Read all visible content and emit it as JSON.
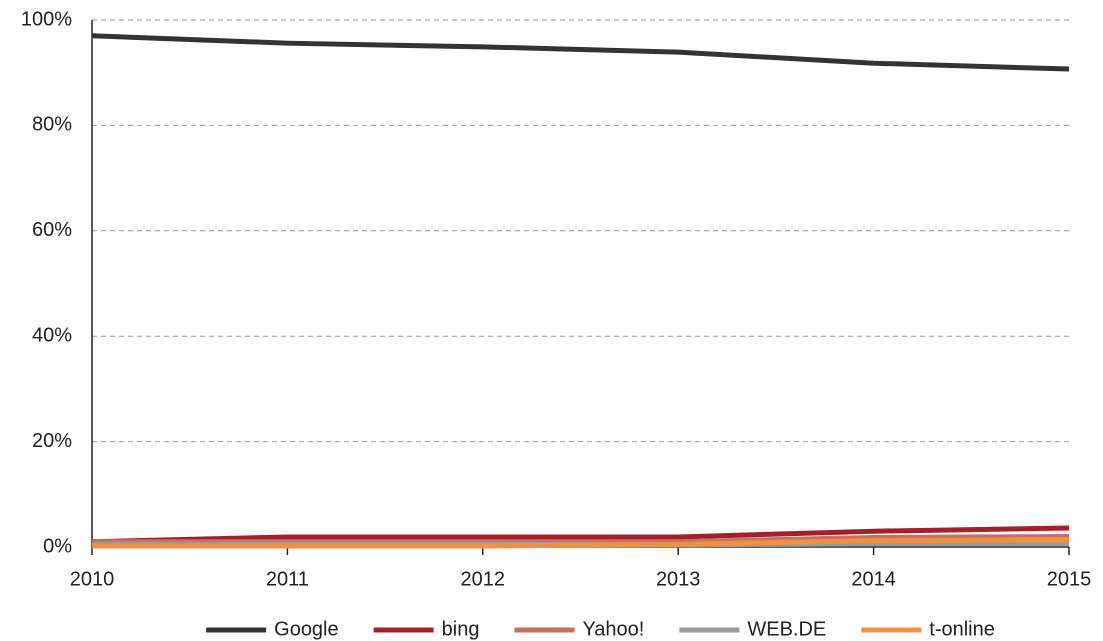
{
  "chart_data": {
    "type": "line",
    "x": [
      2010,
      2011,
      2012,
      2013,
      2014,
      2015
    ],
    "xlim": [
      2010,
      2015
    ],
    "xticks": [
      2010,
      2011,
      2012,
      2013,
      2014,
      2015
    ],
    "ylim": [
      0,
      100
    ],
    "yticks": [
      {
        "value": 0,
        "label": "0%"
      },
      {
        "value": 20,
        "label": "20%"
      },
      {
        "value": 40,
        "label": "40%"
      },
      {
        "value": 60,
        "label": "60%"
      },
      {
        "value": 80,
        "label": "80%"
      },
      {
        "value": 100,
        "label": "100%"
      }
    ],
    "grid": true,
    "legend": "bottom",
    "series": [
      {
        "name": "Google",
        "color": "#333333",
        "values": [
          97.0,
          95.6,
          94.9,
          93.9,
          91.8,
          90.7
        ]
      },
      {
        "name": "bing",
        "color": "#a3202a",
        "values": [
          1.0,
          1.9,
          1.9,
          1.9,
          3.0,
          3.6
        ]
      },
      {
        "name": "Yahoo!",
        "color": "#c87065",
        "values": [
          1.0,
          1.0,
          1.0,
          1.0,
          1.8,
          2.0
        ]
      },
      {
        "name": "WEB.DE",
        "color": "#9a9a9a",
        "values": [
          0.5,
          0.5,
          0.5,
          0.4,
          0.6,
          0.6
        ]
      },
      {
        "name": "t-online",
        "color": "#f0913f",
        "values": [
          0.2,
          0.2,
          0.2,
          0.5,
          1.2,
          1.4
        ]
      }
    ]
  }
}
